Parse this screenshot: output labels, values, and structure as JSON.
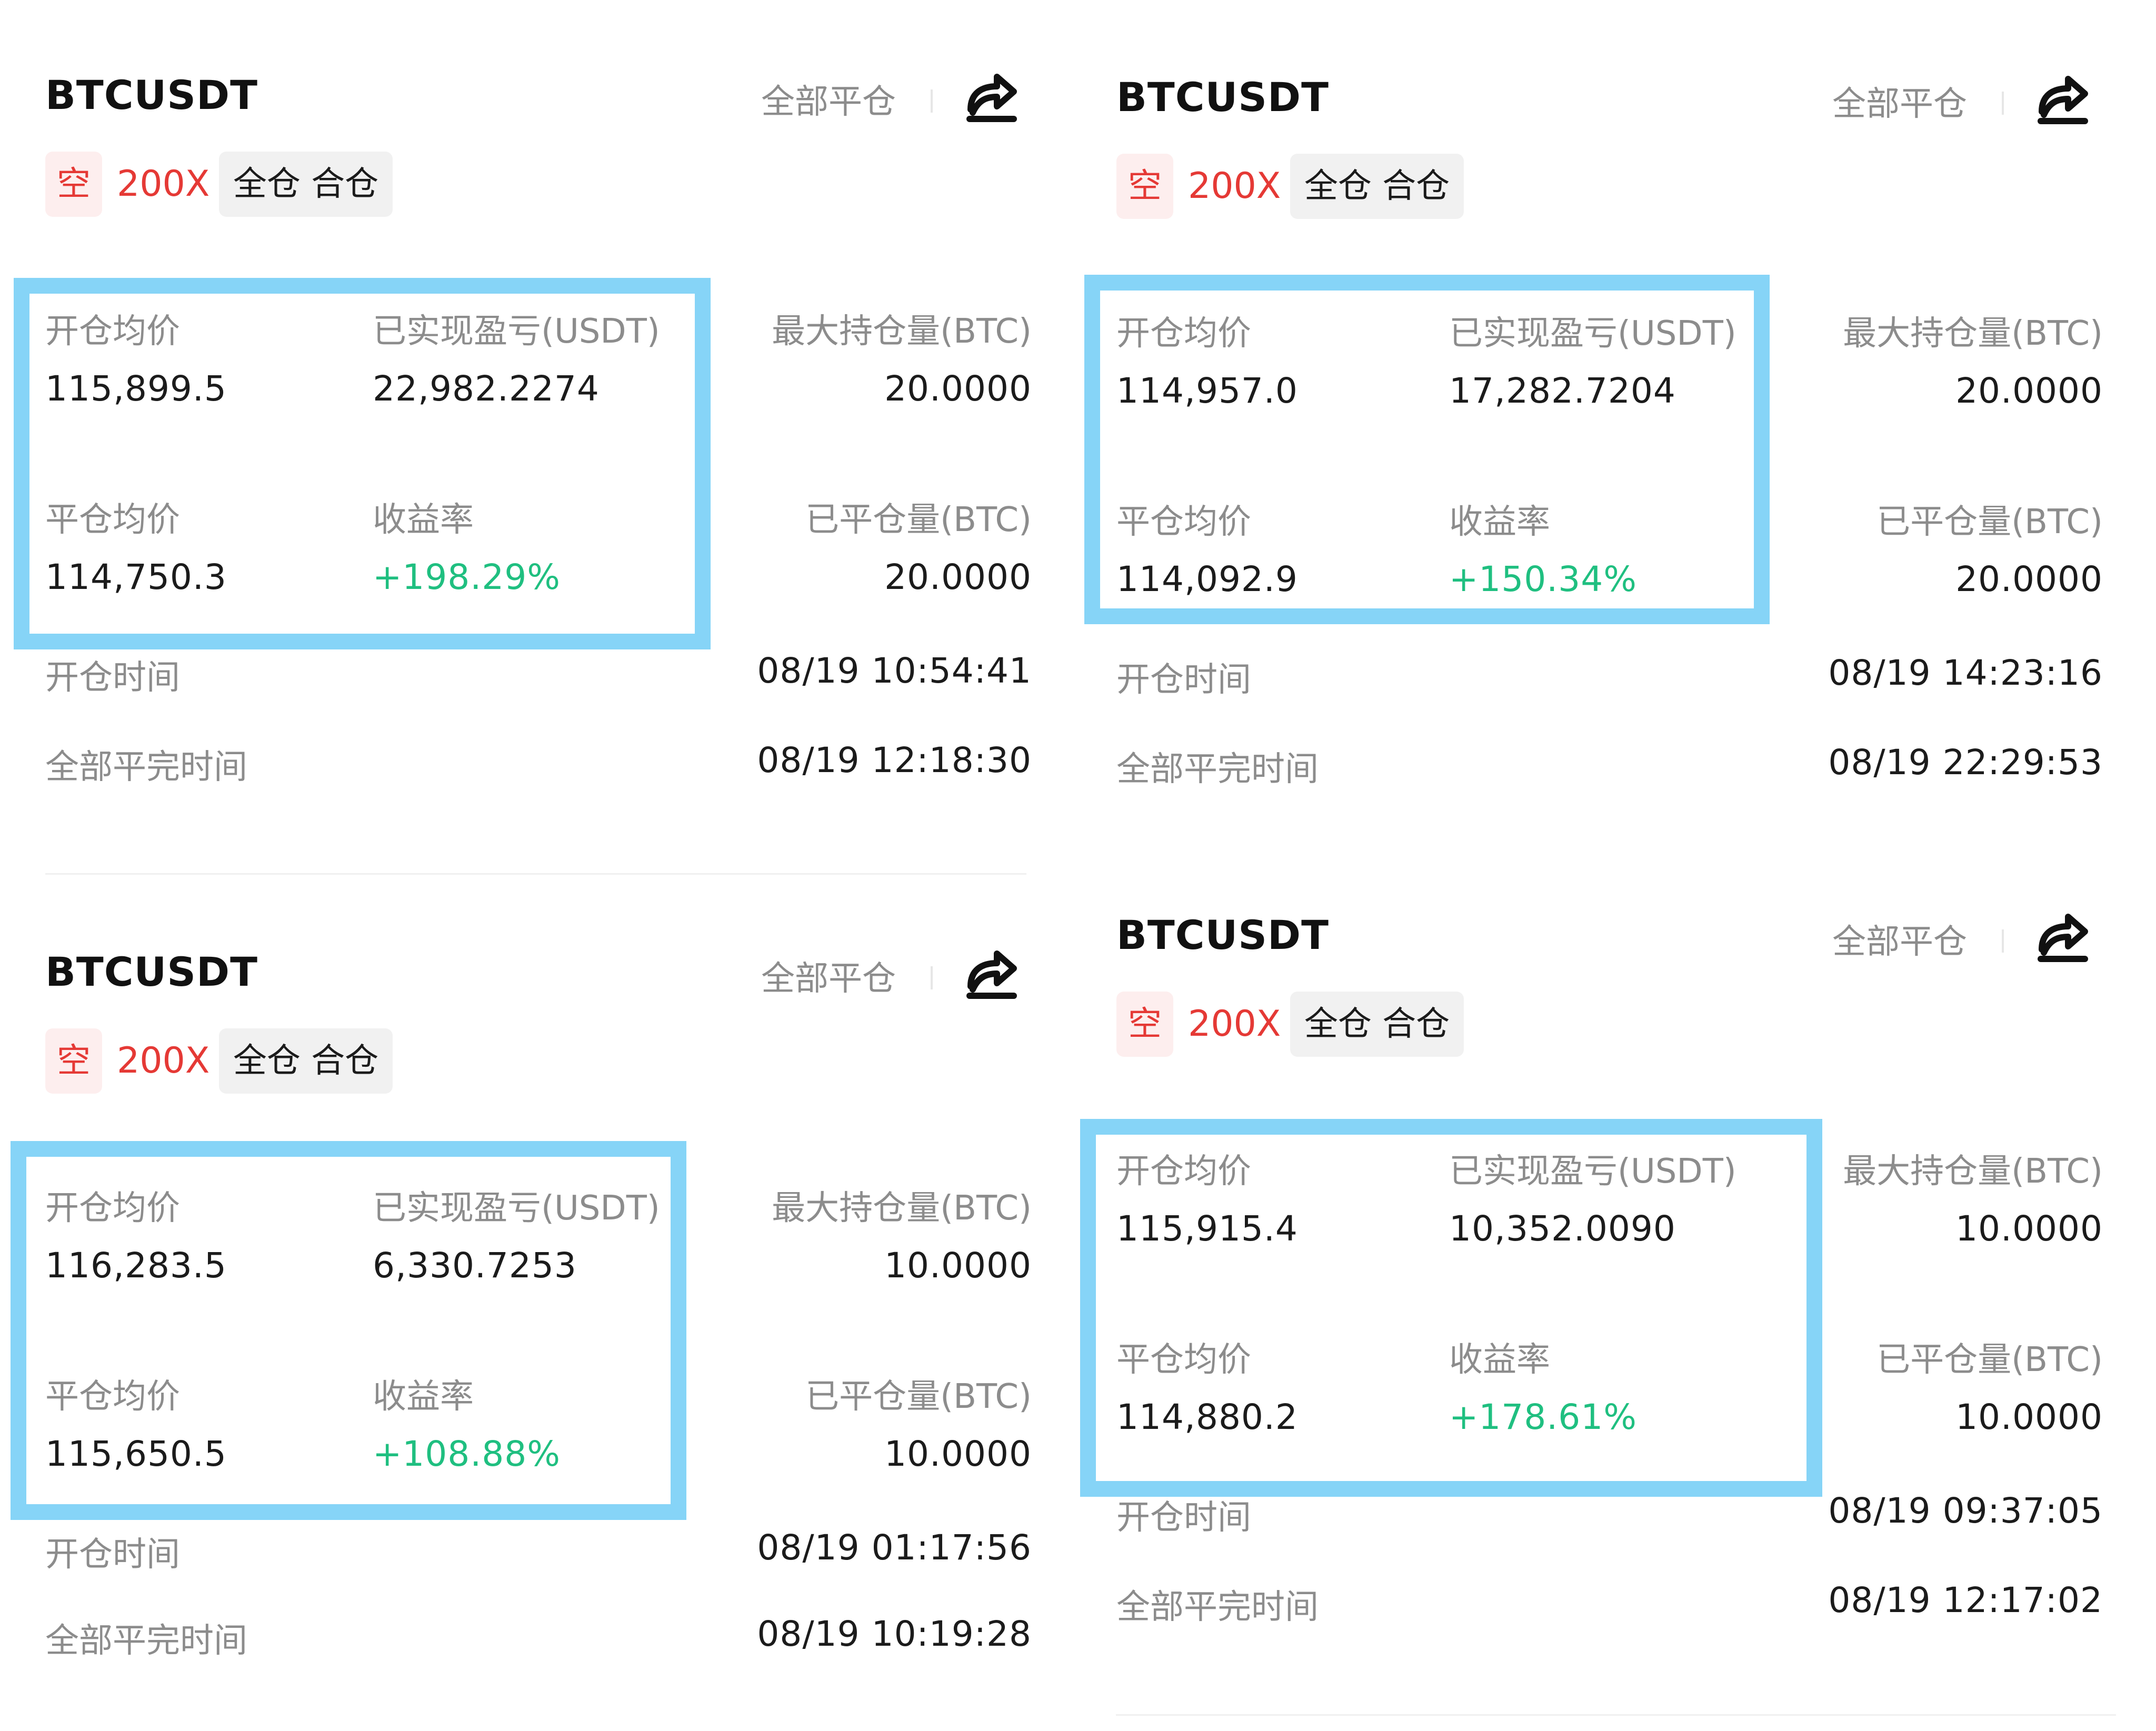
{
  "cards": [
    {
      "symbol": "BTCUSDT",
      "close_all": "全部平仓",
      "direction": "空",
      "leverage": "200X",
      "margin_mode": "全仓 合仓",
      "open_avg_label": "开仓均价",
      "open_avg": "115,899.5",
      "realized_pnl_label": "已实现盈亏(USDT)",
      "realized_pnl": "22,982.2274",
      "max_pos_label": "最大持仓量(BTC)",
      "max_pos": "20.0000",
      "close_avg_label": "平仓均价",
      "close_avg": "114,750.3",
      "roi_label": "收益率",
      "roi": "+198.29%",
      "closed_qty_label": "已平仓量(BTC)",
      "closed_qty": "20.0000",
      "open_time_label": "开仓时间",
      "open_time": "08/19 10:54:41",
      "close_time_label": "全部平完时间",
      "close_time": "08/19 12:18:30"
    },
    {
      "symbol": "BTCUSDT",
      "close_all": "全部平仓",
      "direction": "空",
      "leverage": "200X",
      "margin_mode": "全仓 合仓",
      "open_avg_label": "开仓均价",
      "open_avg": "114,957.0",
      "realized_pnl_label": "已实现盈亏(USDT)",
      "realized_pnl": "17,282.7204",
      "max_pos_label": "最大持仓量(BTC)",
      "max_pos": "20.0000",
      "close_avg_label": "平仓均价",
      "close_avg": "114,092.9",
      "roi_label": "收益率",
      "roi": "+150.34%",
      "closed_qty_label": "已平仓量(BTC)",
      "closed_qty": "20.0000",
      "open_time_label": "开仓时间",
      "open_time": "08/19 14:23:16",
      "close_time_label": "全部平完时间",
      "close_time": "08/19 22:29:53"
    },
    {
      "symbol": "BTCUSDT",
      "close_all": "全部平仓",
      "direction": "空",
      "leverage": "200X",
      "margin_mode": "全仓 合仓",
      "open_avg_label": "开仓均价",
      "open_avg": "116,283.5",
      "realized_pnl_label": "已实现盈亏(USDT)",
      "realized_pnl": "6,330.7253",
      "max_pos_label": "最大持仓量(BTC)",
      "max_pos": "10.0000",
      "close_avg_label": "平仓均价",
      "close_avg": "115,650.5",
      "roi_label": "收益率",
      "roi": "+108.88%",
      "closed_qty_label": "已平仓量(BTC)",
      "closed_qty": "10.0000",
      "open_time_label": "开仓时间",
      "open_time": "08/19 01:17:56",
      "close_time_label": "全部平完时间",
      "close_time": "08/19 10:19:28"
    },
    {
      "symbol": "BTCUSDT",
      "close_all": "全部平仓",
      "direction": "空",
      "leverage": "200X",
      "margin_mode": "全仓 合仓",
      "open_avg_label": "开仓均价",
      "open_avg": "115,915.4",
      "realized_pnl_label": "已实现盈亏(USDT)",
      "realized_pnl": "10,352.0090",
      "max_pos_label": "最大持仓量(BTC)",
      "max_pos": "10.0000",
      "close_avg_label": "平仓均价",
      "close_avg": "114,880.2",
      "roi_label": "收益率",
      "roi": "+178.61%",
      "closed_qty_label": "已平仓量(BTC)",
      "closed_qty": "10.0000",
      "open_time_label": "开仓时间",
      "open_time": "08/19 09:37:05",
      "close_time_label": "全部平完时间",
      "close_time": "08/19 12:17:02"
    }
  ],
  "colors": {
    "short": "#e53935",
    "profit": "#1fbf80",
    "highlight_border": "#86d4f7",
    "label": "#8c8c8c"
  },
  "icons": {
    "share": "share-icon"
  }
}
